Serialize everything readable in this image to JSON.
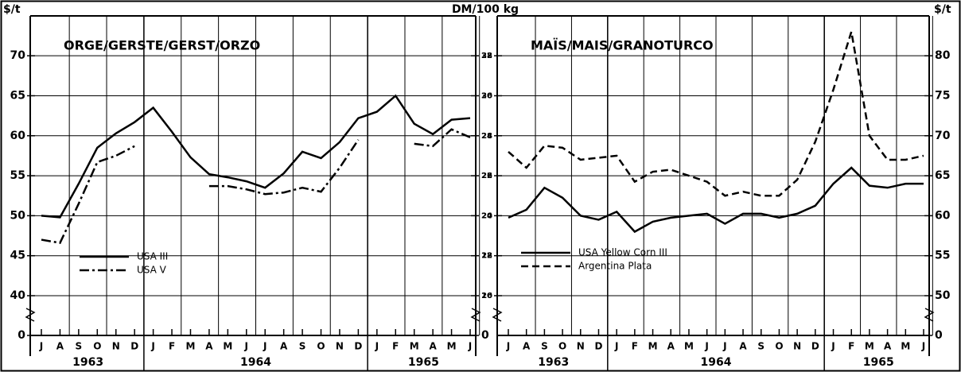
{
  "chart_data": [
    {
      "type": "line",
      "title": "ORGE/GERSTE/GERST/ORZO",
      "ylabel": "$/t",
      "y2label": "DM/100 kg",
      "categories": [
        "J",
        "A",
        "S",
        "O",
        "N",
        "D",
        "J",
        "F",
        "M",
        "A",
        "M",
        "J",
        "J",
        "A",
        "S",
        "O",
        "N",
        "D",
        "J",
        "F",
        "M",
        "A",
        "M",
        "J"
      ],
      "year_groups": [
        {
          "label": "1963",
          "count": 6
        },
        {
          "label": "1964",
          "count": 12
        },
        {
          "label": "1965",
          "count": 6
        }
      ],
      "series": [
        {
          "name": "USA III",
          "color": "#000000",
          "linestyle": "solid",
          "values": [
            50,
            49.8,
            54,
            58.5,
            60.3,
            61.7,
            63.5,
            60.5,
            57.3,
            55.2,
            54.8,
            54.3,
            53.5,
            55.3,
            58,
            57.2,
            59.2,
            62.2,
            63,
            65,
            61.5,
            60.2,
            62,
            62.2
          ]
        },
        {
          "name": "USA V",
          "color": "#000000",
          "linestyle": "dashdot",
          "values": [
            47,
            46.6,
            51.5,
            56.7,
            57.5,
            58.7,
            null,
            null,
            null,
            53.7,
            53.7,
            53.3,
            52.7,
            52.9,
            53.5,
            53,
            56,
            59.5,
            null,
            null,
            59,
            58.7,
            60.8,
            59.8
          ]
        }
      ],
      "ylim": [
        0,
        72.5
      ],
      "yticks": [
        0,
        40,
        45,
        50,
        55,
        60,
        65,
        70
      ],
      "y2lim": [
        0,
        29
      ],
      "y2ticks": [
        0,
        16,
        18,
        20,
        22,
        24,
        26,
        28
      ],
      "y_axis_break": true,
      "grid": true
    },
    {
      "type": "line",
      "title": "MAÏS/MAIS/GRANOTURCO",
      "y2label": "$/t",
      "categories": [
        "J",
        "A",
        "S",
        "O",
        "N",
        "D",
        "J",
        "F",
        "M",
        "A",
        "M",
        "J",
        "J",
        "A",
        "S",
        "O",
        "N",
        "D",
        "J",
        "F",
        "M",
        "A",
        "M",
        "J"
      ],
      "year_groups": [
        {
          "label": "1963",
          "count": 6
        },
        {
          "label": "1964",
          "count": 12
        },
        {
          "label": "1965",
          "count": 6
        }
      ],
      "series": [
        {
          "name": "USA Yellow Corn III",
          "color": "#000000",
          "linestyle": "solid",
          "values": [
            23.9,
            24.3,
            25.4,
            24.9,
            24.0,
            23.8,
            24.2,
            23.2,
            23.7,
            23.9,
            24.0,
            24.1,
            23.6,
            24.1,
            24.1,
            23.9,
            24.1,
            24.5,
            25.6,
            26.4,
            25.5,
            25.4,
            25.6,
            25.6
          ]
        },
        {
          "name": "Argentina Plata",
          "color": "#000000",
          "linestyle": "dashed",
          "values": [
            27.2,
            26.4,
            27.5,
            27.4,
            26.8,
            26.9,
            27.0,
            25.7,
            26.2,
            26.3,
            26.0,
            25.7,
            25.0,
            25.2,
            25.0,
            25.0,
            25.8,
            27.7,
            30.3,
            33.2,
            28.0,
            26.8,
            26.8,
            27.0
          ]
        }
      ],
      "ylim": [
        0,
        33
      ],
      "yticks": [
        20,
        22,
        24,
        26,
        28,
        30,
        32
      ],
      "y2lim": [
        0,
        82.5
      ],
      "y2ticks": [
        0,
        50,
        55,
        60,
        65,
        70,
        75,
        80
      ],
      "y_axis_break": true,
      "grid": true
    }
  ]
}
